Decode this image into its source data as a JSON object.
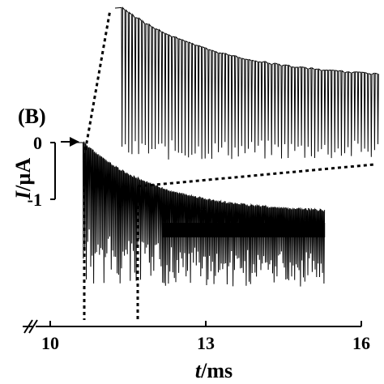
{
  "chart_data": {
    "type": "line",
    "panel_label": "(B)",
    "xlabel_var": "t",
    "xlabel_unit": "/ms",
    "ylabel_var": "I",
    "ylabel_unit": "/µA",
    "x_ticks": [
      "10",
      "13",
      "16"
    ],
    "x_tick_values": [
      10,
      13,
      16
    ],
    "y_ticks": [
      "0",
      "-1"
    ],
    "y_tick_values": [
      0,
      -1
    ],
    "xlim": [
      9.4,
      16
    ],
    "ylim": [
      -1,
      0
    ],
    "axis_break": "x",
    "series": [
      {
        "trace": "main",
        "x_range": [
          10.6,
          15.3
        ],
        "baseline_start": 0,
        "baseline_end": -1.25,
        "spike_min": -2.55,
        "spike_count": 165
      },
      {
        "trace": "inset-magnified",
        "x_source_range": [
          10.6,
          11.8
        ],
        "spike_count": 78
      }
    ]
  }
}
